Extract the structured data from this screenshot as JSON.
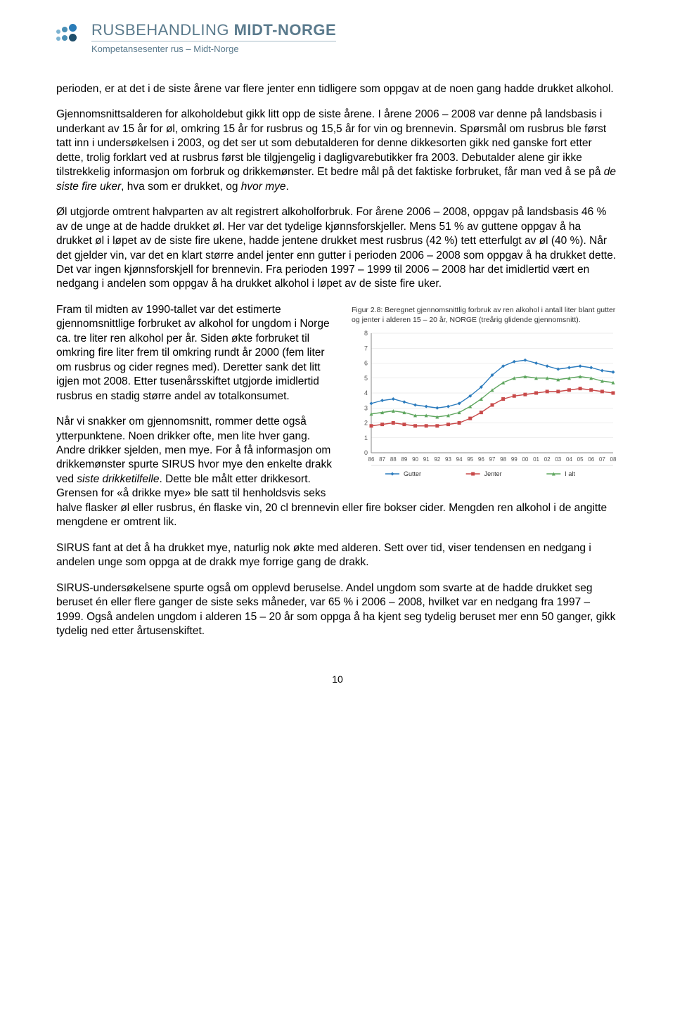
{
  "header": {
    "title_prefix": "RUSBEHANDLING ",
    "title_bold": "MIDT-NORGE",
    "subtitle": "Kompetansesenter rus – Midt-Norge",
    "logo_colors": {
      "blue": "#2a7cb8",
      "dark": "#1f4e6b",
      "mid": "#4a8fb5",
      "light": "#7db3d1"
    }
  },
  "paragraphs": {
    "p1": "perioden, er at det i de siste årene var flere jenter enn tidligere som oppgav at de noen gang hadde drukket alkohol.",
    "p2": "Gjennomsnittsalderen for alkoholdebut gikk litt opp de siste årene. I årene 2006 – 2008 var denne på landsbasis i underkant av 15 år for øl, omkring 15 år for rusbrus og 15,5 år for vin og brennevin. Spørsmål om rusbrus ble først tatt inn i undersøkelsen i 2003, og det ser ut som debutalderen for denne dikkesorten gikk ned ganske fort etter dette, trolig forklart ved at rusbrus først ble tilgjengelig i dagligvarebutikker fra 2003. Debutalder alene gir ikke tilstrekkelig informasjon om forbruk og drikkemønster. Et bedre mål på det faktiske forbruket, får man ved å se på ",
    "p2_em1": "de siste fire uker",
    "p2_mid": ", hva som er drukket, og ",
    "p2_em2": "hvor mye",
    "p2_end": ".",
    "p3": "Øl utgjorde omtrent halvparten av alt registrert alkoholforbruk. For årene 2006 – 2008, oppgav på landsbasis 46 % av de unge at de hadde drukket øl. Her var det tydelige kjønnsforskjeller. Mens 51 % av guttene oppgav å ha drukket øl i løpet av de siste fire ukene, hadde jentene drukket mest rusbrus (42 %) tett etterfulgt av øl (40 %). Når det gjelder vin, var det en klart større andel jenter enn gutter i perioden 2006 – 2008 som oppgav å ha drukket dette. Det var ingen kjønnsforskjell for brennevin. Fra perioden 1997 – 1999 til 2006 – 2008 har det imidlertid vært en nedgang i andelen som oppgav å ha drukket alkohol i løpet av de siste fire uker.",
    "p4": "Fram til midten av 1990-tallet var det estimerte gjennomsnittlige forbruket av alkohol for ungdom i Norge ca. tre liter ren alkohol per år. Siden økte forbruket til omkring fire liter frem til omkring rundt år 2000 (fem liter om rusbrus og cider regnes med). Deretter sank det litt igjen mot 2008. Etter tusenårsskiftet utgjorde imidlertid rusbrus en stadig større andel av totalkonsumet.",
    "p5a": "Når vi snakker om gjennomsnitt, rommer dette også ytterpunktene. Noen drikker ofte, men lite hver gang. Andre drikker sjelden, men mye. For å få informasjon om drikkemønster spurte SIRUS hvor mye den enkelte drakk ved ",
    "p5_em": "siste drikketilfelle",
    "p5b": ". Dette ble målt etter drikkesort. Grensen for «å drikke mye» ble satt til henholdsvis seks halve flasker øl eller rusbrus, én flaske vin, 20 cl brennevin eller fire bokser cider. Mengden ren alkohol i de angitte mengdene er omtrent lik.",
    "p6": "SIRUS fant at det å ha drukket mye, naturlig nok økte med alderen. Sett over tid, viser tendensen en nedgang i andelen unge som oppga at de drakk mye forrige gang de drakk.",
    "p7": "SIRUS-undersøkelsene spurte også om opplevd beruselse. Andel ungdom som svarte at de hadde drukket seg beruset én eller flere ganger de siste seks måneder, var 65 % i 2006 – 2008, hvilket var en nedgang fra 1997 – 1999. Også andelen ungdom i alderen 15 – 20 år som oppga å ha kjent seg tydelig beruset mer enn 50 ganger, gikk tydelig ned etter årtusenskiftet."
  },
  "chart": {
    "caption": "Figur 2.8: Beregnet gjennomsnittlig forbruk av ren alkohol i antall liter blant gutter og jenter i alderen 15 – 20 år, NORGE (treårig glidende gjennomsnitt).",
    "type": "line",
    "ylim": [
      0,
      8
    ],
    "ytick_step": 1,
    "x_labels": [
      "86",
      "87",
      "88",
      "89",
      "90",
      "91",
      "92",
      "93",
      "94",
      "95",
      "96",
      "97",
      "98",
      "99",
      "00",
      "01",
      "02",
      "03",
      "04",
      "05",
      "06",
      "07",
      "08"
    ],
    "series": [
      {
        "name": "Gutter",
        "color": "#2b7bbd",
        "marker": "diamond",
        "values": [
          3.3,
          3.5,
          3.6,
          3.4,
          3.2,
          3.1,
          3.0,
          3.1,
          3.3,
          3.8,
          4.4,
          5.2,
          5.8,
          6.1,
          6.2,
          6.0,
          5.8,
          5.6,
          5.7,
          5.8,
          5.7,
          5.5,
          5.4
        ]
      },
      {
        "name": "Jenter",
        "color": "#c84a4a",
        "marker": "square",
        "values": [
          1.8,
          1.9,
          2.0,
          1.9,
          1.8,
          1.8,
          1.8,
          1.9,
          2.0,
          2.3,
          2.7,
          3.2,
          3.6,
          3.8,
          3.9,
          4.0,
          4.1,
          4.1,
          4.2,
          4.3,
          4.2,
          4.1,
          4.0
        ]
      },
      {
        "name": "I alt",
        "color": "#5fa65f",
        "marker": "triangle",
        "values": [
          2.6,
          2.7,
          2.8,
          2.7,
          2.5,
          2.5,
          2.4,
          2.5,
          2.7,
          3.1,
          3.6,
          4.2,
          4.7,
          5.0,
          5.1,
          5.0,
          5.0,
          4.9,
          5.0,
          5.1,
          5.0,
          4.8,
          4.7
        ]
      }
    ],
    "axis_color": "#888888",
    "grid_color": "#dddddd",
    "label_fontsize": 9,
    "background_color": "#ffffff"
  },
  "page_number": "10"
}
